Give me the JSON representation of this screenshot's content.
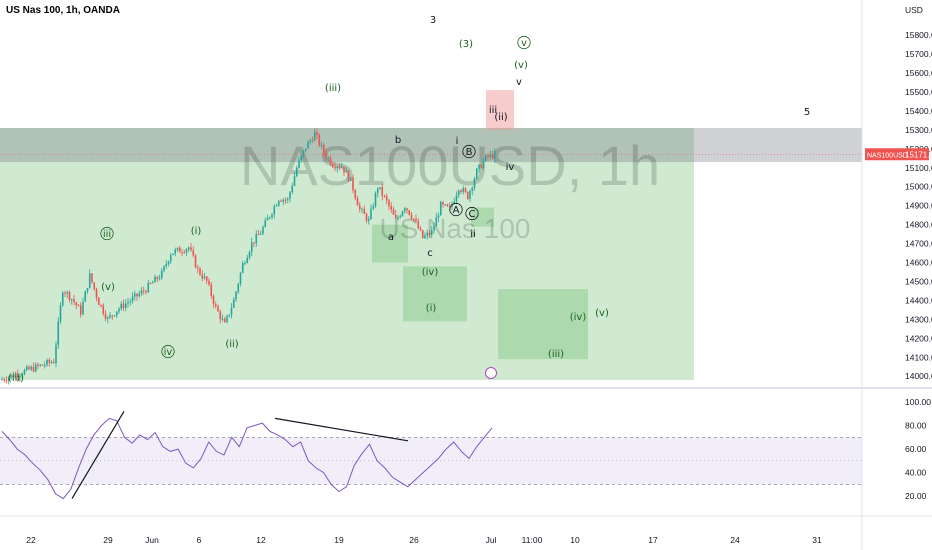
{
  "header": {
    "title": "US Nas 100, 1h, OANDA"
  },
  "watermark": {
    "symbol": "NAS100USD, 1h",
    "name": "US Nas 100"
  },
  "price_axis": {
    "unit": "USD",
    "ticks": [
      "15800.0",
      "15700.0",
      "15600.0",
      "15500.0",
      "15400.0",
      "15300.0",
      "15200.0",
      "15100.0",
      "15000.0",
      "14900.0",
      "14800.0",
      "14700.0",
      "14600.0",
      "14500.0",
      "14400.0",
      "14300.0",
      "14200.0",
      "14100.0",
      "14000.0"
    ],
    "current_label": "NAS100USD",
    "current_value": "15171.4"
  },
  "rsi_axis": {
    "ticks": [
      "100.00",
      "80.00",
      "60.00",
      "40.00",
      "20.00"
    ]
  },
  "time_axis": {
    "ticks": [
      "22",
      "29",
      "Jun",
      "6",
      "12",
      "19",
      "26",
      "Jul",
      "11:00",
      "10",
      "17",
      "24",
      "31"
    ]
  },
  "colors": {
    "up": "#26a69a",
    "down": "#ef5350",
    "rsi": "#7e57c2",
    "zone_green": "#81c784",
    "zone_gray": "#787b86",
    "zone_red": "#ef9a9a",
    "wave_label": "#1b5e20"
  },
  "wave_labels": [
    {
      "text": "3",
      "color": "#131722"
    },
    {
      "text": "(3)",
      "color": "#1b5e20"
    },
    {
      "text": "v",
      "color": "#1b5e20",
      "circled": true
    },
    {
      "text": "(v)",
      "color": "#1b5e20"
    },
    {
      "text": "v",
      "color": "#131722"
    },
    {
      "text": "(iii)",
      "color": "#1b5e20"
    },
    {
      "text": "iii",
      "color": "#131722"
    },
    {
      "text": "(ii)",
      "color": "#131722"
    },
    {
      "text": "5",
      "color": "#131722"
    },
    {
      "text": "b",
      "color": "#131722"
    },
    {
      "text": "i",
      "color": "#131722"
    },
    {
      "text": "B",
      "color": "#131722",
      "circled": true
    },
    {
      "text": "iv",
      "color": "#131722"
    },
    {
      "text": "A",
      "color": "#131722",
      "circled": true
    },
    {
      "text": "C",
      "color": "#131722",
      "circled": true
    },
    {
      "text": "ii",
      "color": "#131722"
    },
    {
      "text": "iii",
      "color": "#1b5e20",
      "circled": true
    },
    {
      "text": "(i)",
      "color": "#1b5e20"
    },
    {
      "text": "a",
      "color": "#131722"
    },
    {
      "text": "c",
      "color": "#131722"
    },
    {
      "text": "(iv)",
      "color": "#1b5e20"
    },
    {
      "text": "(v)",
      "color": "#1b5e20"
    },
    {
      "text": "(i)",
      "color": "#1b5e20"
    },
    {
      "text": "iv",
      "color": "#1b5e20",
      "circled": true
    },
    {
      "text": "(ii)",
      "color": "#1b5e20"
    },
    {
      "text": "(iv)",
      "color": "#1b5e20"
    },
    {
      "text": "(v)",
      "color": "#1b5e20"
    },
    {
      "text": "(iii)",
      "color": "#1b5e20"
    },
    {
      "text": "(iii)",
      "color": "#1b5e20"
    }
  ],
  "chart_data": [
    {
      "type": "candlestick",
      "title": "US Nas 100, 1h, OANDA",
      "ylabel": "USD",
      "ylim": [
        13980,
        15880
      ],
      "x_categories": [
        "22",
        "29",
        "Jun",
        "6",
        "12",
        "19",
        "26",
        "Jul",
        "11:00",
        "10",
        "17",
        "24",
        "31"
      ],
      "last_price": 15171.4,
      "close_path": [
        [
          0,
          13980
        ],
        [
          6,
          14080
        ],
        [
          7,
          14460
        ],
        [
          8,
          14410
        ],
        [
          9,
          14340
        ],
        [
          10,
          14530
        ],
        [
          11,
          14390
        ],
        [
          12,
          14300
        ],
        [
          13,
          14350
        ],
        [
          16,
          14450
        ],
        [
          18,
          14540
        ],
        [
          19,
          14650
        ],
        [
          21,
          14680
        ],
        [
          22,
          14560
        ],
        [
          23,
          14500
        ],
        [
          24,
          14360
        ],
        [
          25,
          14270
        ],
        [
          26,
          14400
        ],
        [
          27,
          14590
        ],
        [
          28,
          14700
        ],
        [
          29,
          14760
        ],
        [
          30,
          14850
        ],
        [
          31,
          14940
        ],
        [
          32,
          14930
        ],
        [
          33,
          15100
        ],
        [
          34,
          15210
        ],
        [
          35,
          15280
        ],
        [
          36,
          15180
        ],
        [
          37,
          15120
        ],
        [
          38,
          15110
        ],
        [
          39,
          15030
        ],
        [
          40,
          14880
        ],
        [
          41,
          14820
        ],
        [
          42,
          15000
        ],
        [
          43,
          14920
        ],
        [
          44,
          14820
        ],
        [
          45,
          14900
        ],
        [
          46,
          14830
        ],
        [
          47,
          14730
        ],
        [
          48,
          14760
        ],
        [
          49,
          14900
        ],
        [
          50,
          14880
        ],
        [
          51,
          15000
        ],
        [
          52,
          14950
        ],
        [
          53,
          15080
        ],
        [
          54,
          15150
        ],
        [
          55,
          15171
        ]
      ]
    },
    {
      "type": "line",
      "title": "RSI",
      "ylim": [
        10,
        105
      ],
      "bands": [
        30,
        70
      ],
      "values": [
        75,
        68,
        60,
        55,
        48,
        42,
        34,
        22,
        18,
        26,
        44,
        60,
        72,
        80,
        86,
        84,
        70,
        65,
        72,
        68,
        74,
        62,
        58,
        60,
        48,
        44,
        52,
        66,
        58,
        55,
        70,
        62,
        78,
        80,
        82,
        75,
        72,
        68,
        62,
        66,
        50,
        44,
        40,
        30,
        24,
        28,
        46,
        56,
        64,
        50,
        44,
        36,
        32,
        28,
        34,
        40,
        46,
        52,
        60,
        66,
        58,
        52,
        62,
        70,
        78
      ]
    }
  ]
}
